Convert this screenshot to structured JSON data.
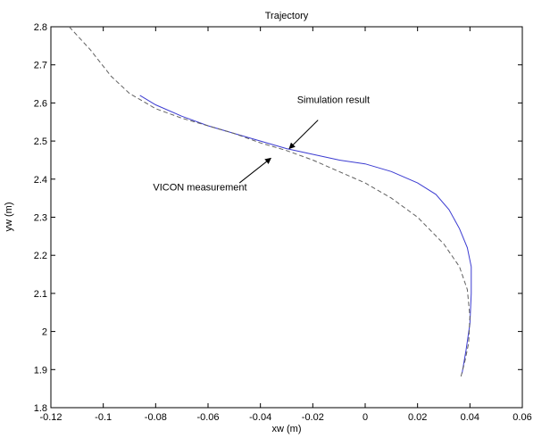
{
  "chart_data": {
    "type": "line",
    "title": "Trajectory",
    "xlabel": "xw (m)",
    "ylabel": "yw (m)",
    "xlim": [
      -0.12,
      0.06
    ],
    "ylim": [
      1.8,
      2.8
    ],
    "xticks": [
      -0.12,
      -0.1,
      -0.08,
      -0.06,
      -0.04,
      -0.02,
      0,
      0.02,
      0.04,
      0.06
    ],
    "xtick_labels": [
      "-0.12",
      "-0.1",
      "-0.08",
      "-0.06",
      "-0.04",
      "-0.02",
      "0",
      "0.02",
      "0.04",
      "0.06"
    ],
    "yticks": [
      1.8,
      1.9,
      2.0,
      2.1,
      2.2,
      2.3,
      2.4,
      2.5,
      2.6,
      2.7,
      2.8
    ],
    "ytick_labels": [
      "1.8",
      "1.9",
      "2",
      "2.1",
      "2.2",
      "2.3",
      "2.4",
      "2.5",
      "2.6",
      "2.7",
      "2.8"
    ],
    "grid": false,
    "legend": "none",
    "series": [
      {
        "color": "#3b3bd1",
        "line_style": "solid",
        "x": [
          -0.086,
          -0.08,
          -0.07,
          -0.06,
          -0.05,
          -0.04,
          -0.03,
          -0.02,
          -0.01,
          0.0,
          0.01,
          0.02,
          0.027,
          0.032,
          0.036,
          0.039,
          0.0405,
          0.0405,
          0.04,
          0.0385,
          0.037
        ],
        "y": [
          2.62,
          2.595,
          2.565,
          2.54,
          2.52,
          2.5,
          2.48,
          2.465,
          2.45,
          2.44,
          2.42,
          2.39,
          2.36,
          2.32,
          2.27,
          2.22,
          2.17,
          2.1,
          2.02,
          1.95,
          1.89
        ]
      },
      {
        "color": "#606060",
        "line_style": "dashed",
        "x": [
          -0.113,
          -0.105,
          -0.097,
          -0.09,
          -0.08,
          -0.07,
          -0.06,
          -0.05,
          -0.04,
          -0.03,
          -0.02,
          -0.01,
          0.0,
          0.01,
          0.02,
          0.03,
          0.036,
          0.039,
          0.04,
          0.0395,
          0.038,
          0.0365
        ],
        "y": [
          2.8,
          2.74,
          2.67,
          2.625,
          2.585,
          2.56,
          2.54,
          2.52,
          2.495,
          2.475,
          2.45,
          2.42,
          2.39,
          2.35,
          2.3,
          2.23,
          2.17,
          2.11,
          2.04,
          1.97,
          1.92,
          1.88
        ]
      }
    ],
    "annotations": [
      {
        "text": "Simulation result",
        "text_x": -0.026,
        "text_y": 2.6,
        "arrow_from_x": -0.018,
        "arrow_from_y": 2.555,
        "arrow_to_x": -0.029,
        "arrow_to_y": 2.48
      },
      {
        "text": "VICON measurement",
        "text_x": -0.081,
        "text_y": 2.37,
        "arrow_from_x": -0.048,
        "arrow_from_y": 2.39,
        "arrow_to_x": -0.036,
        "arrow_to_y": 2.455
      }
    ],
    "colors": {
      "axes": "#000000",
      "background": "#ffffff"
    }
  }
}
